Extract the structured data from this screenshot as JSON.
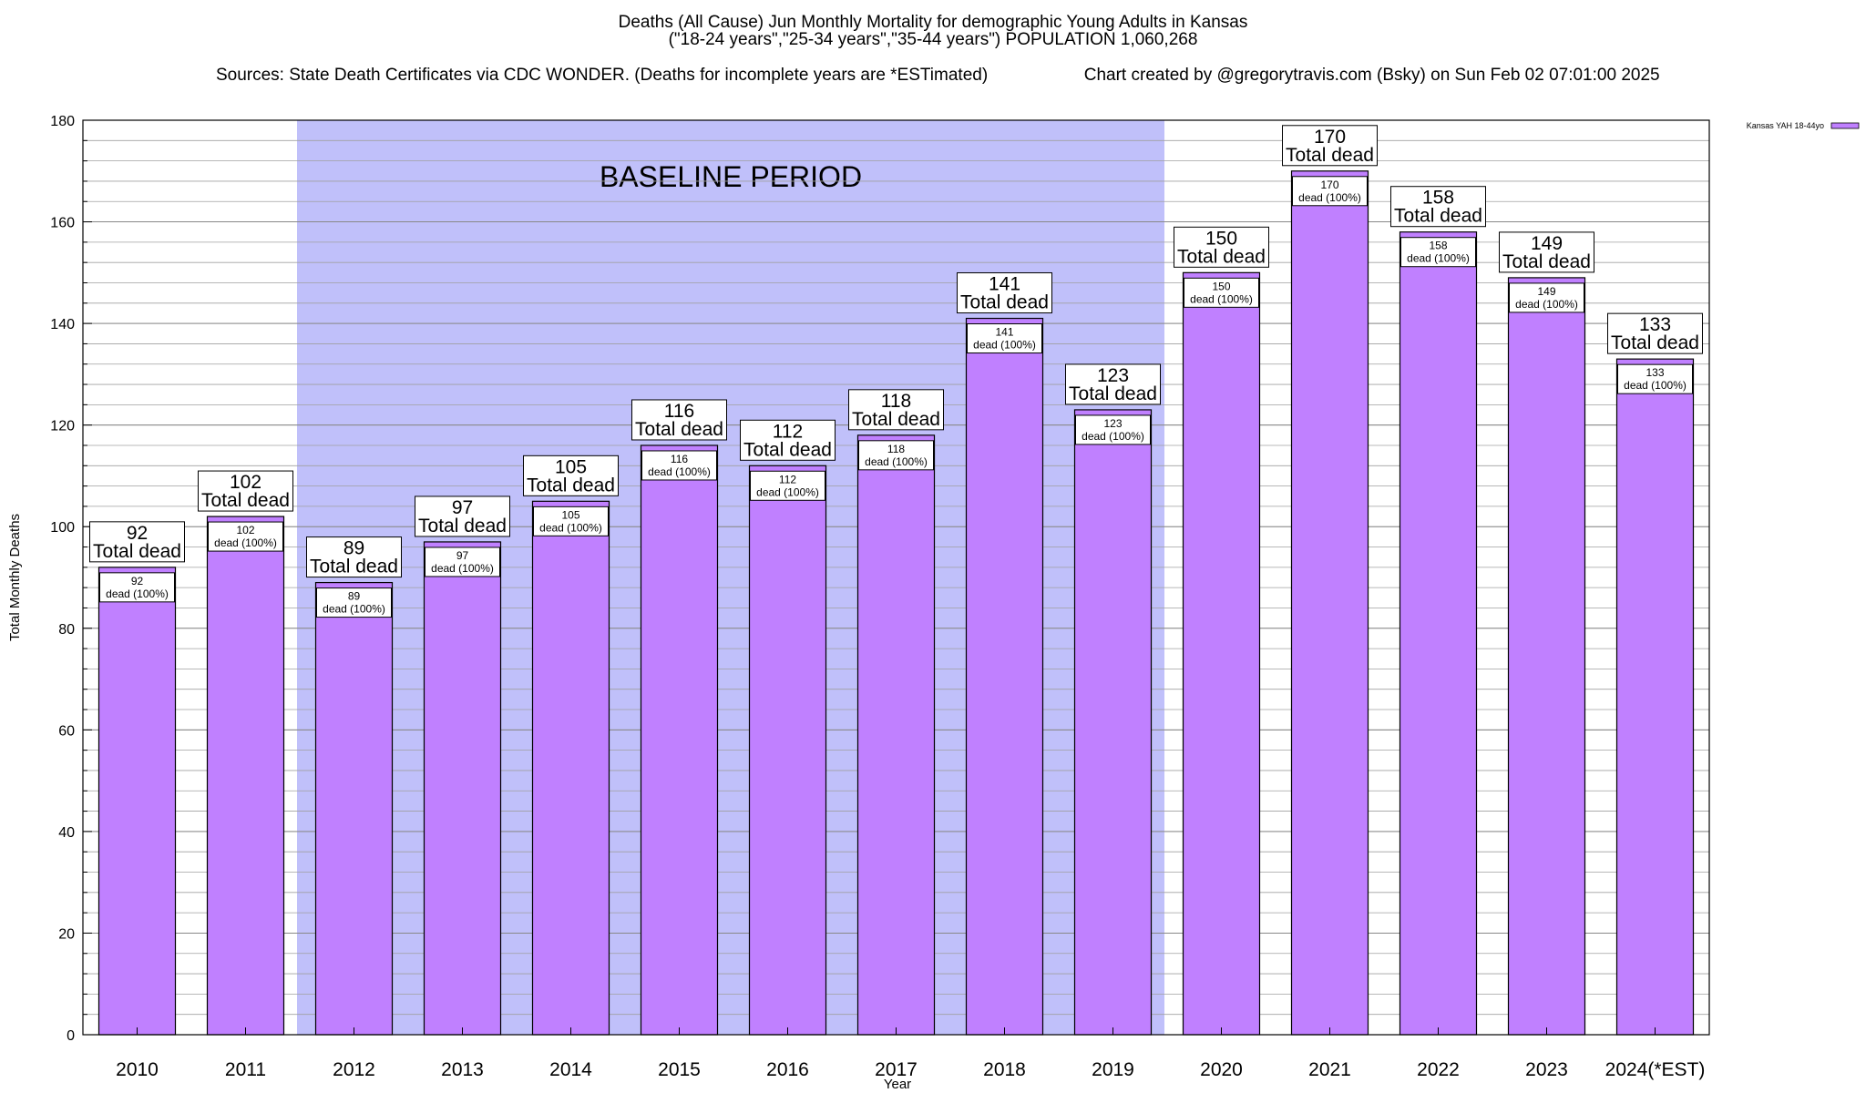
{
  "chart_data": {
    "type": "bar",
    "title": "Deaths (All Cause) Jun Monthly Mortality for demographic Young Adults in Kansas",
    "subtitle": "(\"18-24 years\",\"25-34 years\",\"35-44 years\") POPULATION 1,060,268",
    "sources": "Sources: State Death Certificates via CDC WONDER. (Deaths for incomplete years are *ESTimated)",
    "credit": "Chart created by @gregorytravis.com (Bsky) on Sun Feb 02 07:01:00 2025",
    "xlabel": "Year",
    "ylabel": "Total Monthly Deaths",
    "ylim": [
      0,
      180
    ],
    "yticks": [
      0,
      20,
      40,
      60,
      80,
      100,
      120,
      140,
      160,
      180
    ],
    "grid": true,
    "categories": [
      "2010",
      "2011",
      "2012",
      "2013",
      "2014",
      "2015",
      "2016",
      "2017",
      "2018",
      "2019",
      "2020",
      "2021",
      "2022",
      "2023",
      "2024(*EST)"
    ],
    "series": [
      {
        "name": "Kansas YAH 18-44yo",
        "values": [
          92,
          102,
          89,
          97,
          105,
          116,
          112,
          118,
          141,
          123,
          150,
          170,
          158,
          149,
          133
        ]
      }
    ],
    "bar_total_label": "Total dead",
    "bar_inner_labels": [
      "dead (100%)",
      "dead (100%)",
      "dead (100%)",
      "dead (100%)",
      "dead (100%)",
      "dead (100%)",
      "dead (100%)",
      "dead (100%)",
      "dead (100%)",
      "dead (100%)",
      "dead (100%)",
      "dead (100%)",
      "dead (100%)",
      "dead (100%)",
      "dead (100%)"
    ],
    "baseline_period": {
      "label": "BASELINE PERIOD",
      "from": "2012",
      "to": "2019"
    },
    "legend_position": "top-right",
    "colors": {
      "bar": "#c080ff",
      "baseline": "#c0c0fa",
      "grid": "#a0a0a0"
    }
  }
}
